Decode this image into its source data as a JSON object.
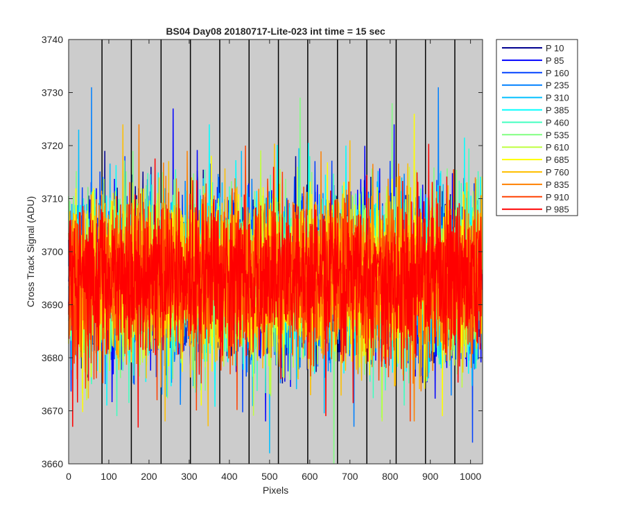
{
  "chart_data": {
    "type": "line",
    "title": "BS04 Day08 20180717-Lite-023 int time = 15 sec",
    "xlabel": "Pixels",
    "ylabel": "Cross Track Signal (ADU)",
    "xlim": [
      0,
      1030
    ],
    "ylim": [
      3660,
      3740
    ],
    "x_ticks": [
      0,
      100,
      200,
      300,
      400,
      500,
      600,
      700,
      800,
      900,
      1000
    ],
    "y_ticks": [
      3660,
      3670,
      3680,
      3690,
      3700,
      3710,
      3720,
      3730,
      3740
    ],
    "grid": false,
    "legend_position": "outside-top-right",
    "background_color": "#cccccc",
    "vertical_lines": [
      83,
      156,
      230,
      303,
      376,
      449,
      522,
      595,
      669,
      742,
      815,
      888,
      961
    ],
    "noise_model": {
      "mean": 3695,
      "std": 7.5,
      "pixels": 1030
    },
    "series": [
      {
        "name": "P 10",
        "color": "#00008f",
        "spikes": [
          [
            90,
            3719
          ],
          [
            205,
            3716
          ],
          [
            565,
            3718
          ]
        ]
      },
      {
        "name": "P 85",
        "color": "#0000ff",
        "spikes": [
          [
            260,
            3727
          ],
          [
            490,
            3668
          ],
          [
            810,
            3724
          ]
        ]
      },
      {
        "name": "P 160",
        "color": "#0040ff",
        "spikes": [
          [
            140,
            3718
          ],
          [
            780,
            3674
          ],
          [
            1005,
            3664
          ]
        ]
      },
      {
        "name": "P 235",
        "color": "#0080ff",
        "spikes": [
          [
            57,
            3731
          ],
          [
            920,
            3731
          ],
          [
            710,
            3667
          ]
        ]
      },
      {
        "name": "P 310",
        "color": "#00bfff",
        "spikes": [
          [
            25,
            3723
          ],
          [
            500,
            3662
          ],
          [
            430,
            3719
          ]
        ]
      },
      {
        "name": "P 385",
        "color": "#00ffff",
        "spikes": [
          [
            95,
            3671
          ],
          [
            350,
            3724
          ],
          [
            690,
            3720
          ]
        ]
      },
      {
        "name": "P 460",
        "color": "#40ffbf",
        "spikes": [
          [
            120,
            3669
          ],
          [
            600,
            3718
          ],
          [
            835,
            3671
          ]
        ]
      },
      {
        "name": "P 535",
        "color": "#80ff80",
        "spikes": [
          [
            660,
            3660
          ],
          [
            805,
            3728
          ],
          [
            160,
            3719
          ]
        ]
      },
      {
        "name": "P 610",
        "color": "#bfff40",
        "spikes": [
          [
            780,
            3668
          ],
          [
            570,
            3716
          ],
          [
            45,
            3672
          ]
        ]
      },
      {
        "name": "P 685",
        "color": "#ffff00",
        "spikes": [
          [
            860,
            3726
          ],
          [
            930,
            3669
          ],
          [
            330,
            3671
          ]
        ]
      },
      {
        "name": "P 760",
        "color": "#ffbf00",
        "spikes": [
          [
            135,
            3724
          ],
          [
            240,
            3668
          ],
          [
            700,
            3721
          ]
        ]
      },
      {
        "name": "P 835",
        "color": "#ff8000",
        "spikes": [
          [
            175,
            3724
          ],
          [
            860,
            3668
          ],
          [
            295,
            3719
          ]
        ]
      },
      {
        "name": "P 910",
        "color": "#ff4000",
        "spikes": [
          [
            440,
            3720
          ],
          [
            850,
            3668
          ],
          [
            220,
            3672
          ]
        ]
      },
      {
        "name": "P 985",
        "color": "#ff0000",
        "spikes": [
          [
            10,
            3667
          ],
          [
            640,
            3669
          ],
          [
            510,
            3716
          ]
        ]
      }
    ]
  }
}
